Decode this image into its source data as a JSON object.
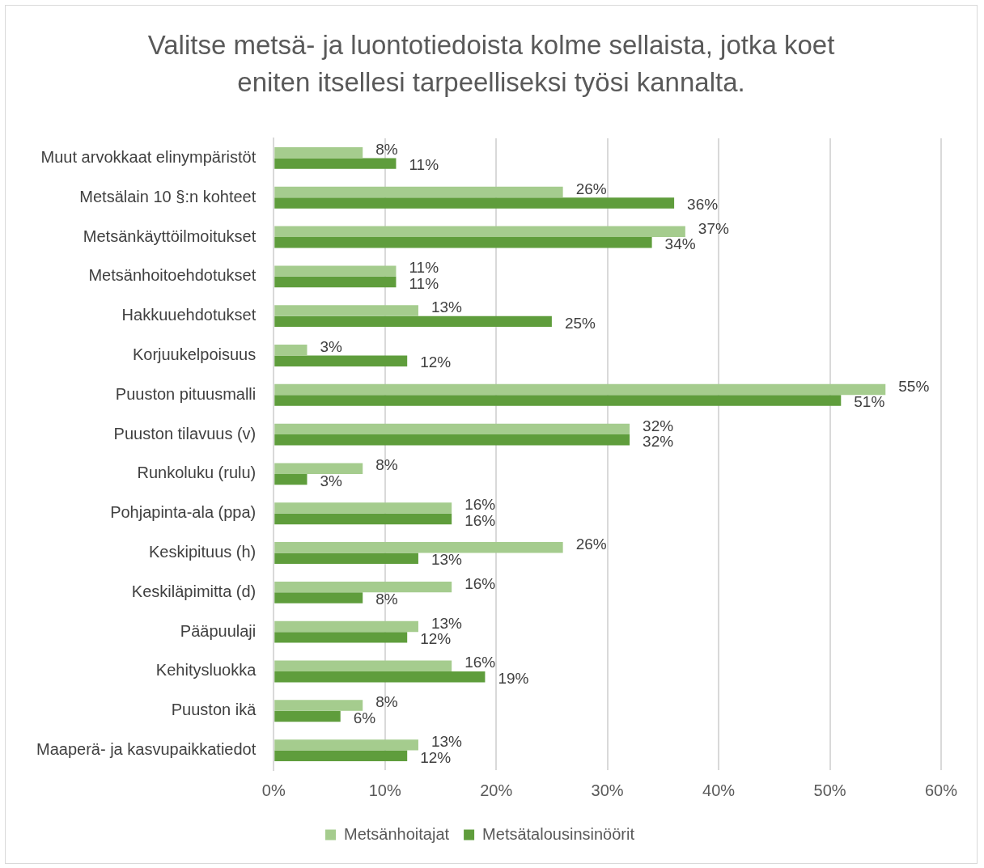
{
  "chart_data": {
    "type": "bar",
    "orientation": "horizontal",
    "title": "Valitse metsä- ja luontotiedoista kolme sellaista, jotka koet eniten itsellesi tarpeelliseksi työsi kannalta.",
    "categories": [
      "Muut arvokkaat elinympäristöt",
      "Metsälain 10 §:n kohteet",
      "Metsänkäyttöilmoitukset",
      "Metsänhoitoehdotukset",
      "Hakkuuehdotukset",
      "Korjuukelpoisuus",
      "Puuston pituusmalli",
      "Puuston tilavuus (v)",
      "Runkoluku (rulu)",
      "Pohjapinta-ala (ppa)",
      "Keskipituus (h)",
      "Keskiläpimitta (d)",
      "Pääpuulaji",
      "Kehitysluokka",
      "Puuston ikä",
      "Maaperä- ja kasvupaikkatiedot"
    ],
    "series": [
      {
        "name": "Metsänhoitajat",
        "color": "#a5cc8e",
        "values": [
          8,
          26,
          37,
          11,
          13,
          3,
          55,
          32,
          8,
          16,
          26,
          16,
          13,
          16,
          8,
          13
        ],
        "value_labels": [
          "8%",
          "26%",
          "37%",
          "11%",
          "13%",
          "3%",
          "55%",
          "32%",
          "8%",
          "16%",
          "26%",
          "16%",
          "13%",
          "16%",
          "8%",
          "13%"
        ]
      },
      {
        "name": "Metsätalousinsinöörit",
        "color": "#5f9d3c",
        "values": [
          11,
          36,
          34,
          11,
          25,
          12,
          51,
          32,
          3,
          16,
          13,
          8,
          12,
          19,
          6,
          12
        ],
        "value_labels": [
          "11%",
          "36%",
          "34%",
          "11%",
          "25%",
          "12%",
          "51%",
          "32%",
          "3%",
          "16%",
          "13%",
          "8%",
          "12%",
          "19%",
          "6%",
          "12%"
        ]
      }
    ],
    "xlim": [
      0,
      60
    ],
    "xticks": [
      {
        "value": 0,
        "label": "0%"
      },
      {
        "value": 10,
        "label": "10%"
      },
      {
        "value": 20,
        "label": "20%"
      },
      {
        "value": 30,
        "label": "30%"
      },
      {
        "value": 40,
        "label": "40%"
      },
      {
        "value": 50,
        "label": "50%"
      },
      {
        "value": 60,
        "label": "60%"
      }
    ],
    "grid": "x",
    "legend": "bottom"
  }
}
